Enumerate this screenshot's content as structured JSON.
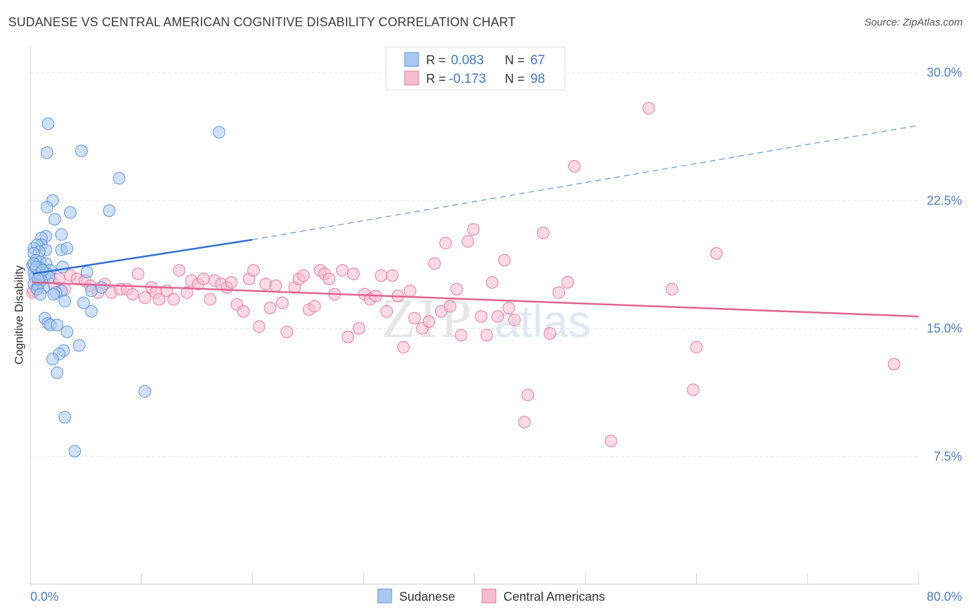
{
  "title": "SUDANESE VS CENTRAL AMERICAN COGNITIVE DISABILITY CORRELATION CHART",
  "source": "Source: ZipAtlas.com",
  "watermark": {
    "zip": "ZIP",
    "atlas": "atlas"
  },
  "colors": {
    "sudanese": "#5b93d9",
    "sudanese_fill": "#a9c8f0",
    "central": "#e9779d",
    "central_fill": "#f6bccf",
    "tick_label": "#4a7cc4",
    "grid": "#e3e3e3"
  },
  "legend_top": [
    {
      "r_label": "R = ",
      "r_value": "0.083",
      "n_label": "N = ",
      "n_value": "67"
    },
    {
      "r_label": "R = ",
      "r_value": "-0.173",
      "n_label": "N = ",
      "n_value": "98"
    }
  ],
  "chart_data": {
    "type": "scatter",
    "title": "SUDANESE VS CENTRAL AMERICAN COGNITIVE DISABILITY CORRELATION CHART",
    "xlabel": "",
    "ylabel": "Cognitive Disability",
    "xlim": [
      0,
      80
    ],
    "ylim": [
      0,
      31.5
    ],
    "x_tick_labels": [
      "0.0%",
      "80.0%"
    ],
    "y_ticks": [
      7.5,
      15.0,
      22.5,
      30.0
    ],
    "y_tick_labels": [
      "7.5%",
      "15.0%",
      "22.5%",
      "30.0%"
    ],
    "grid": true,
    "legend_position": "bottom-center",
    "series": [
      {
        "name": "Sudanese",
        "r": 0.083,
        "n": 67,
        "trend": {
          "x1": 0.2,
          "y1": 18.2,
          "x2": 20.0,
          "y2": 20.2,
          "x_dash_end": 80.0,
          "y_dash_end": 26.9
        },
        "points": [
          [
            1.6,
            27.0
          ],
          [
            17.0,
            26.5
          ],
          [
            1.5,
            25.3
          ],
          [
            4.6,
            25.4
          ],
          [
            8.0,
            23.8
          ],
          [
            2.0,
            22.5
          ],
          [
            1.5,
            22.1
          ],
          [
            7.1,
            21.9
          ],
          [
            3.6,
            21.8
          ],
          [
            2.2,
            21.4
          ],
          [
            1.4,
            20.4
          ],
          [
            1.0,
            20.3
          ],
          [
            2.8,
            20.5
          ],
          [
            1.0,
            19.9
          ],
          [
            0.3,
            19.7
          ],
          [
            0.6,
            19.9
          ],
          [
            1.4,
            19.6
          ],
          [
            0.8,
            19.5
          ],
          [
            2.8,
            19.6
          ],
          [
            3.3,
            19.7
          ],
          [
            0.3,
            19.4
          ],
          [
            0.5,
            19.0
          ],
          [
            0.2,
            18.7
          ],
          [
            0.9,
            18.9
          ],
          [
            1.4,
            18.8
          ],
          [
            2.9,
            18.6
          ],
          [
            0.5,
            18.5
          ],
          [
            1.0,
            18.5
          ],
          [
            1.8,
            18.4
          ],
          [
            0.3,
            18.3
          ],
          [
            0.8,
            18.2
          ],
          [
            1.5,
            18.2
          ],
          [
            5.1,
            18.3
          ],
          [
            0.4,
            18.0
          ],
          [
            0.9,
            18.0
          ],
          [
            1.7,
            18.0
          ],
          [
            1.0,
            17.8
          ],
          [
            0.3,
            17.6
          ],
          [
            0.7,
            17.5
          ],
          [
            1.2,
            17.4
          ],
          [
            0.6,
            17.3
          ],
          [
            2.8,
            17.2
          ],
          [
            6.4,
            17.4
          ],
          [
            2.3,
            17.1
          ],
          [
            5.5,
            17.2
          ],
          [
            0.9,
            17.0
          ],
          [
            2.1,
            17.0
          ],
          [
            3.1,
            16.6
          ],
          [
            4.8,
            16.5
          ],
          [
            5.5,
            16.0
          ],
          [
            1.3,
            15.6
          ],
          [
            1.6,
            15.3
          ],
          [
            1.8,
            15.2
          ],
          [
            2.4,
            15.2
          ],
          [
            3.3,
            14.8
          ],
          [
            4.4,
            14.0
          ],
          [
            3.0,
            13.7
          ],
          [
            2.6,
            13.5
          ],
          [
            2.0,
            13.2
          ],
          [
            2.4,
            12.4
          ],
          [
            10.3,
            11.3
          ],
          [
            3.1,
            9.8
          ],
          [
            4.0,
            7.8
          ],
          [
            0.3,
            18.8
          ],
          [
            0.5,
            18.6
          ],
          [
            1.1,
            18.4
          ],
          [
            0.7,
            17.9
          ]
        ]
      },
      {
        "name": "Central Americans",
        "r": -0.173,
        "n": 98,
        "trend": {
          "x1": 0.2,
          "y1": 17.7,
          "x2": 80.0,
          "y2": 15.7
        },
        "points": [
          [
            0.3,
            17.2
          ],
          [
            0.7,
            17.6
          ],
          [
            1.3,
            18.0
          ],
          [
            2.1,
            17.6
          ],
          [
            2.6,
            17.9
          ],
          [
            3.1,
            17.3
          ],
          [
            3.6,
            18.1
          ],
          [
            4.2,
            17.9
          ],
          [
            4.9,
            17.8
          ],
          [
            5.4,
            17.5
          ],
          [
            6.1,
            17.1
          ],
          [
            6.7,
            17.6
          ],
          [
            7.3,
            17.1
          ],
          [
            8.1,
            17.3
          ],
          [
            8.7,
            17.3
          ],
          [
            9.2,
            17.0
          ],
          [
            9.7,
            18.2
          ],
          [
            10.3,
            16.8
          ],
          [
            10.9,
            17.4
          ],
          [
            11.3,
            17.1
          ],
          [
            11.6,
            16.7
          ],
          [
            12.3,
            17.2
          ],
          [
            12.9,
            16.7
          ],
          [
            13.4,
            18.4
          ],
          [
            14.1,
            17.1
          ],
          [
            14.5,
            17.8
          ],
          [
            15.1,
            17.6
          ],
          [
            15.6,
            17.9
          ],
          [
            16.2,
            16.7
          ],
          [
            16.6,
            17.8
          ],
          [
            17.2,
            17.6
          ],
          [
            17.7,
            17.4
          ],
          [
            18.1,
            17.7
          ],
          [
            18.6,
            16.4
          ],
          [
            19.2,
            16.0
          ],
          [
            19.7,
            17.9
          ],
          [
            20.1,
            18.4
          ],
          [
            20.6,
            15.1
          ],
          [
            21.2,
            17.6
          ],
          [
            21.6,
            16.2
          ],
          [
            22.1,
            17.5
          ],
          [
            22.7,
            16.5
          ],
          [
            23.1,
            14.8
          ],
          [
            23.8,
            17.4
          ],
          [
            24.2,
            17.9
          ],
          [
            24.6,
            18.1
          ],
          [
            25.1,
            16.1
          ],
          [
            25.6,
            16.3
          ],
          [
            26.1,
            18.4
          ],
          [
            26.5,
            18.2
          ],
          [
            26.9,
            17.9
          ],
          [
            27.4,
            17.0
          ],
          [
            28.1,
            18.4
          ],
          [
            28.6,
            14.5
          ],
          [
            29.1,
            18.2
          ],
          [
            29.6,
            15.0
          ],
          [
            30.1,
            17.0
          ],
          [
            30.6,
            16.7
          ],
          [
            31.1,
            16.9
          ],
          [
            31.6,
            18.1
          ],
          [
            32.1,
            16.0
          ],
          [
            32.6,
            18.1
          ],
          [
            33.1,
            16.9
          ],
          [
            33.6,
            13.9
          ],
          [
            34.2,
            17.2
          ],
          [
            34.6,
            15.6
          ],
          [
            35.3,
            15.0
          ],
          [
            35.9,
            15.4
          ],
          [
            36.4,
            18.8
          ],
          [
            37.0,
            16.0
          ],
          [
            37.4,
            20.0
          ],
          [
            37.8,
            16.3
          ],
          [
            38.4,
            17.3
          ],
          [
            38.8,
            14.6
          ],
          [
            39.4,
            20.1
          ],
          [
            39.9,
            20.8
          ],
          [
            40.6,
            15.7
          ],
          [
            41.1,
            14.6
          ],
          [
            41.6,
            17.7
          ],
          [
            42.1,
            15.7
          ],
          [
            42.7,
            19.0
          ],
          [
            43.1,
            16.2
          ],
          [
            43.6,
            15.5
          ],
          [
            44.5,
            9.5
          ],
          [
            44.8,
            11.1
          ],
          [
            46.2,
            20.6
          ],
          [
            46.8,
            14.7
          ],
          [
            47.6,
            17.1
          ],
          [
            48.4,
            17.7
          ],
          [
            49.0,
            24.5
          ],
          [
            52.3,
            8.4
          ],
          [
            55.7,
            27.9
          ],
          [
            57.8,
            17.3
          ],
          [
            59.7,
            11.4
          ],
          [
            60.0,
            13.9
          ],
          [
            61.8,
            19.4
          ],
          [
            77.8,
            12.9
          ],
          [
            0.2,
            17.1
          ]
        ]
      }
    ]
  },
  "legend_bottom": [
    {
      "label": "Sudanese"
    },
    {
      "label": "Central Americans"
    }
  ]
}
